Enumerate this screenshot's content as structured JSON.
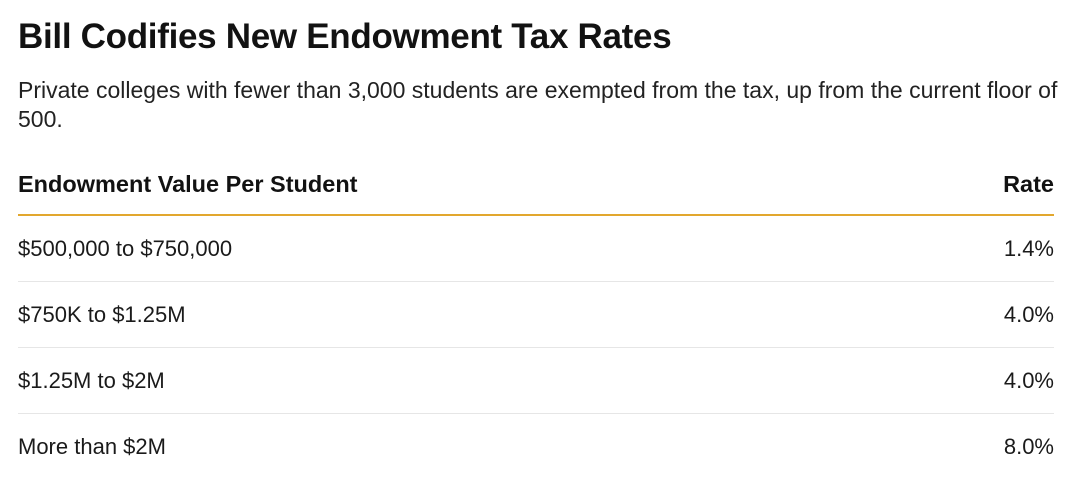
{
  "chart_data": {
    "type": "table",
    "title": "Bill Codifies New Endowment Tax Rates",
    "subtitle": "Private colleges with fewer than 3,000 students are exempted from the tax, up from the current floor of 500.",
    "columns": [
      "Endowment Value Per Student",
      "Rate"
    ],
    "rows": [
      {
        "range": "$500,000 to $750,000",
        "rate": "1.4%",
        "value": 1.4
      },
      {
        "range": "$750K to $1.25M",
        "rate": "4.0%",
        "value": 4.0
      },
      {
        "range": "$1.25M to $2M",
        "rate": "4.0%",
        "value": 4.0
      },
      {
        "range": "More than $2M",
        "rate": "8.0%",
        "value": 8.0
      }
    ],
    "accent_color": "#e2a72e"
  }
}
